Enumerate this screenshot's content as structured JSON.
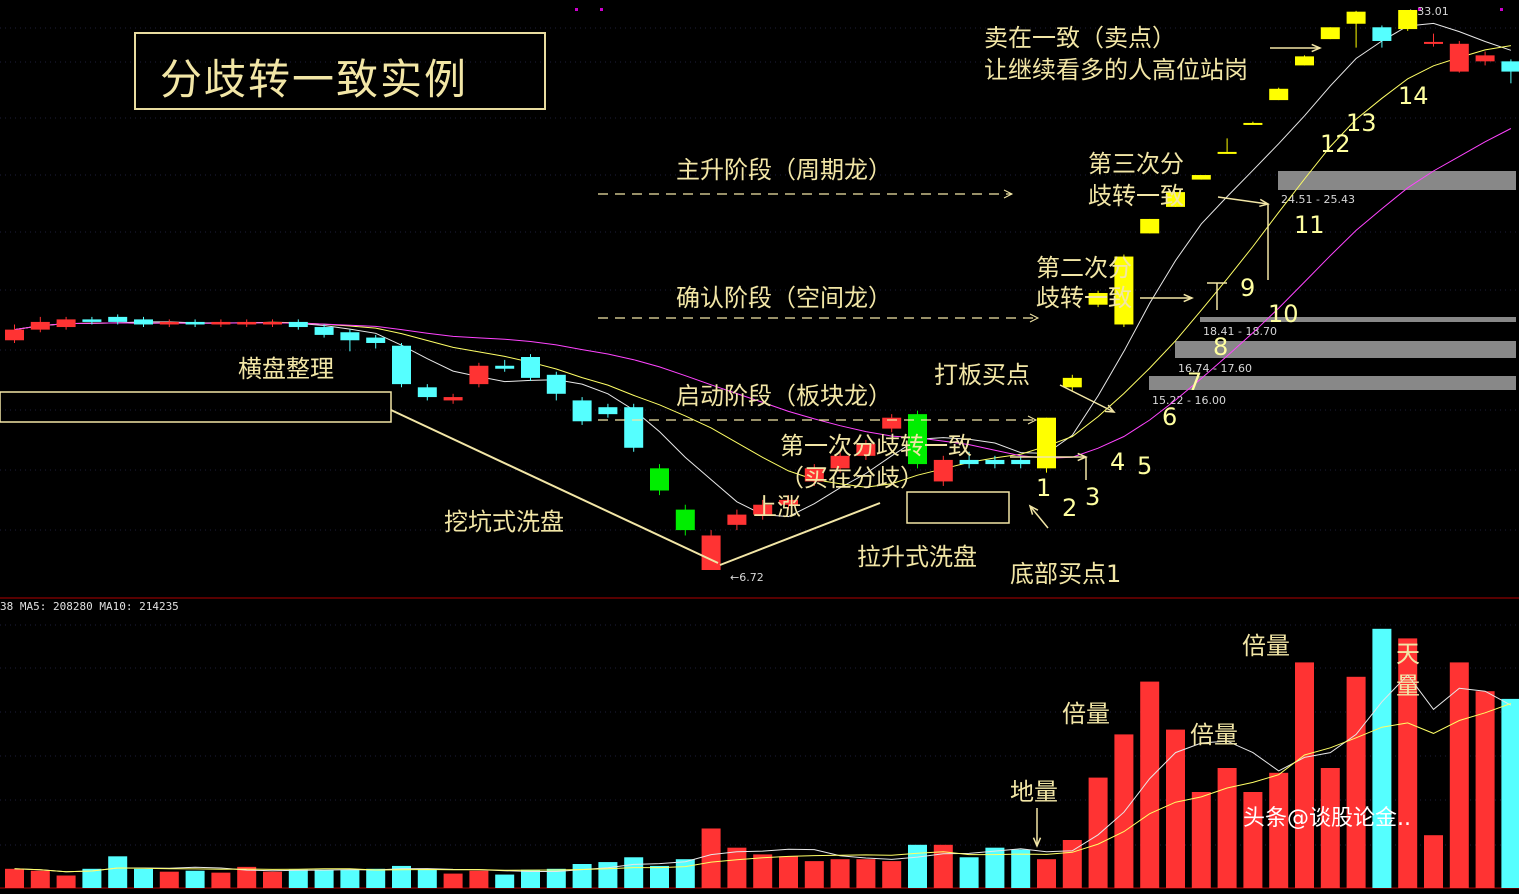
{
  "title": "分歧转一致实例",
  "volume_info": "38 MA5: 208280 MA10: 214235",
  "watermark": "头条@谈股论金..",
  "colors": {
    "up": "#ff3333",
    "down": "#55ffff",
    "bright_down": "#00ee00",
    "limit_up": "#ffff00",
    "ma_white": "#e8e8e8",
    "ma_yellow": "#ffff66",
    "ma_magenta": "#ff44ff",
    "zone": "#888888",
    "annotation": "#f2e6a6"
  },
  "chart_data": {
    "type": "candlestick",
    "candles": [
      {
        "i": 0,
        "o": 10.4,
        "c": 10.8,
        "h": 11.0,
        "l": 10.3,
        "color": "up",
        "vol": 20
      },
      {
        "i": 1,
        "o": 10.8,
        "c": 11.1,
        "h": 11.3,
        "l": 10.7,
        "color": "up",
        "vol": 18
      },
      {
        "i": 2,
        "o": 10.9,
        "c": 11.2,
        "h": 11.3,
        "l": 10.8,
        "color": "up",
        "vol": 13
      },
      {
        "i": 3,
        "o": 11.2,
        "c": 11.1,
        "h": 11.3,
        "l": 11.0,
        "color": "down",
        "vol": 20
      },
      {
        "i": 4,
        "o": 11.3,
        "c": 11.1,
        "h": 11.4,
        "l": 11.0,
        "color": "down",
        "vol": 33
      },
      {
        "i": 5,
        "o": 11.2,
        "c": 11.0,
        "h": 11.3,
        "l": 10.9,
        "color": "down",
        "vol": 20
      },
      {
        "i": 6,
        "o": 11.0,
        "c": 11.1,
        "h": 11.2,
        "l": 10.9,
        "color": "up",
        "vol": 17
      },
      {
        "i": 7,
        "o": 11.1,
        "c": 11.0,
        "h": 11.2,
        "l": 10.9,
        "color": "down",
        "vol": 18
      },
      {
        "i": 8,
        "o": 11.0,
        "c": 11.1,
        "h": 11.2,
        "l": 10.9,
        "color": "up",
        "vol": 16
      },
      {
        "i": 9,
        "o": 11.0,
        "c": 11.1,
        "h": 11.2,
        "l": 10.9,
        "color": "up",
        "vol": 22
      },
      {
        "i": 10,
        "o": 11.0,
        "c": 11.1,
        "h": 11.2,
        "l": 10.9,
        "color": "up",
        "vol": 17
      },
      {
        "i": 11,
        "o": 11.1,
        "c": 10.9,
        "h": 11.2,
        "l": 10.8,
        "color": "down",
        "vol": 19
      },
      {
        "i": 12,
        "o": 10.9,
        "c": 10.6,
        "h": 11.0,
        "l": 10.5,
        "color": "down",
        "vol": 19
      },
      {
        "i": 13,
        "o": 10.7,
        "c": 10.4,
        "h": 10.8,
        "l": 10.0,
        "color": "down",
        "vol": 19
      },
      {
        "i": 14,
        "o": 10.5,
        "c": 10.3,
        "h": 10.6,
        "l": 10.1,
        "color": "down",
        "vol": 20
      },
      {
        "i": 15,
        "o": 10.2,
        "c": 8.9,
        "h": 10.3,
        "l": 8.8,
        "color": "down",
        "vol": 23
      },
      {
        "i": 16,
        "o": 8.8,
        "c": 8.5,
        "h": 8.9,
        "l": 8.4,
        "color": "down",
        "vol": 20
      },
      {
        "i": 17,
        "o": 8.4,
        "c": 8.5,
        "h": 8.6,
        "l": 8.3,
        "color": "up",
        "vol": 15
      },
      {
        "i": 18,
        "o": 8.9,
        "c": 9.5,
        "h": 9.6,
        "l": 8.8,
        "color": "up",
        "vol": 18
      },
      {
        "i": 19,
        "o": 9.4,
        "c": 9.5,
        "h": 9.7,
        "l": 9.3,
        "color": "down",
        "vol": 14
      },
      {
        "i": 20,
        "o": 9.8,
        "c": 9.1,
        "h": 9.9,
        "l": 9.0,
        "color": "down",
        "vol": 19
      },
      {
        "i": 21,
        "o": 9.2,
        "c": 8.6,
        "h": 9.3,
        "l": 8.4,
        "color": "down",
        "vol": 20
      },
      {
        "i": 22,
        "o": 8.4,
        "c": 7.8,
        "h": 8.5,
        "l": 7.7,
        "color": "down",
        "vol": 25
      },
      {
        "i": 23,
        "o": 8.2,
        "c": 8.0,
        "h": 8.3,
        "l": 7.9,
        "color": "down",
        "vol": 27
      },
      {
        "i": 24,
        "o": 8.2,
        "c": 7.1,
        "h": 8.3,
        "l": 7.0,
        "color": "down",
        "vol": 32
      },
      {
        "i": 25,
        "o": 6.6,
        "c": 6.1,
        "h": 6.7,
        "l": 6.0,
        "color": "bright_down",
        "vol": 23
      },
      {
        "i": 26,
        "o": 5.7,
        "c": 5.3,
        "h": 5.8,
        "l": 5.2,
        "color": "bright_down",
        "vol": 30
      },
      {
        "i": 27,
        "o": 4.6,
        "c": 5.2,
        "h": 5.3,
        "l": 4.6,
        "color": "up",
        "vol": 62
      },
      {
        "i": 28,
        "o": 5.4,
        "c": 5.6,
        "h": 5.7,
        "l": 5.3,
        "color": "up",
        "vol": 42
      },
      {
        "i": 29,
        "o": 5.6,
        "c": 5.8,
        "h": 5.9,
        "l": 5.5,
        "color": "up",
        "vol": 35
      },
      {
        "i": 30,
        "o": 5.8,
        "c": 5.9,
        "h": 6.0,
        "l": 5.7,
        "color": "up",
        "vol": 33
      },
      {
        "i": 31,
        "o": 6.3,
        "c": 6.6,
        "h": 6.7,
        "l": 6.2,
        "color": "up",
        "vol": 28
      },
      {
        "i": 32,
        "o": 6.6,
        "c": 6.9,
        "h": 7.0,
        "l": 6.5,
        "color": "up",
        "vol": 30
      },
      {
        "i": 33,
        "o": 6.9,
        "c": 7.2,
        "h": 7.3,
        "l": 6.8,
        "color": "up",
        "vol": 30
      },
      {
        "i": 34,
        "o": 7.6,
        "c": 7.9,
        "h": 8.0,
        "l": 7.5,
        "color": "up",
        "vol": 28
      },
      {
        "i": 35,
        "o": 6.7,
        "c": 8.0,
        "h": 8.1,
        "l": 6.6,
        "color": "bright_down",
        "vol": 45
      },
      {
        "i": 36,
        "o": 6.3,
        "c": 6.8,
        "h": 6.9,
        "l": 6.2,
        "color": "up",
        "vol": 45
      },
      {
        "i": 37,
        "o": 6.8,
        "c": 6.7,
        "h": 7.0,
        "l": 6.6,
        "color": "down",
        "vol": 32
      },
      {
        "i": 38,
        "o": 6.8,
        "c": 6.7,
        "h": 6.9,
        "l": 6.6,
        "color": "down",
        "vol": 42
      },
      {
        "i": 39,
        "o": 6.8,
        "c": 6.7,
        "h": 6.9,
        "l": 6.6,
        "color": "down",
        "vol": 40
      },
      {
        "i": 40,
        "o": 6.6,
        "c": 7.9,
        "h": 7.9,
        "l": 6.5,
        "color": "limit_up",
        "vol": 30
      },
      {
        "i": 41,
        "o": 8.8,
        "c": 9.1,
        "h": 9.2,
        "l": 8.7,
        "color": "limit_up",
        "vol": 50
      },
      {
        "i": 42,
        "o": 11.8,
        "c": 12.3,
        "h": 12.4,
        "l": 11.7,
        "color": "limit_up",
        "vol": 115
      },
      {
        "i": 43,
        "o": 11.0,
        "c": 14.0,
        "h": 14.1,
        "l": 10.9,
        "color": "limit_up",
        "vol": 160
      },
      {
        "i": 44,
        "o": 15.2,
        "c": 16.0,
        "h": 16.0,
        "l": 15.2,
        "color": "limit_up",
        "vol": 215
      },
      {
        "i": 45,
        "o": 16.7,
        "c": 17.6,
        "h": 17.6,
        "l": 16.7,
        "color": "limit_up",
        "vol": 165
      },
      {
        "i": 46,
        "o": 18.4,
        "c": 18.7,
        "h": 18.7,
        "l": 18.4,
        "color": "limit_up",
        "vol": 100
      },
      {
        "i": 47,
        "o": 20.3,
        "c": 20.3,
        "h": 21.3,
        "l": 20.3,
        "color": "limit_up",
        "vol": 125
      },
      {
        "i": 48,
        "o": 22.5,
        "c": 22.5,
        "h": 22.6,
        "l": 22.4,
        "color": "limit_up",
        "vol": 100
      },
      {
        "i": 49,
        "o": 24.4,
        "c": 25.4,
        "h": 25.5,
        "l": 24.4,
        "color": "limit_up",
        "vol": 120
      },
      {
        "i": 50,
        "o": 27.6,
        "c": 28.5,
        "h": 28.6,
        "l": 27.6,
        "color": "limit_up",
        "vol": 235
      },
      {
        "i": 51,
        "o": 30.3,
        "c": 31.6,
        "h": 31.6,
        "l": 30.3,
        "color": "limit_up",
        "vol": 125
      },
      {
        "i": 52,
        "o": 32.0,
        "c": 33.4,
        "h": 33.5,
        "l": 29.4,
        "color": "limit_up",
        "vol": 220
      },
      {
        "i": 53,
        "o": 30.1,
        "c": 31.6,
        "h": 31.8,
        "l": 29.4,
        "color": "down",
        "vol": 270
      },
      {
        "i": 54,
        "o": 31.4,
        "c": 33.6,
        "h": 33.6,
        "l": 31.2,
        "color": "limit_up",
        "vol": 260
      },
      {
        "i": 55,
        "o": 30.0,
        "c": 30.0,
        "h": 30.9,
        "l": 29.5,
        "color": "up",
        "vol": 55
      },
      {
        "i": 56,
        "o": 29.8,
        "c": 27.0,
        "h": 30.1,
        "l": 26.9,
        "color": "up",
        "vol": 235
      },
      {
        "i": 57,
        "o": 28.6,
        "c": 28.0,
        "h": 29.0,
        "l": 27.6,
        "color": "up",
        "vol": 205
      },
      {
        "i": 58,
        "o": 28.0,
        "c": 27.0,
        "h": 28.2,
        "l": 25.9,
        "color": "down",
        "vol": 197
      }
    ],
    "price_levels": [
      {
        "label": "33.01"
      },
      {
        "label": "24.51 - 25.43"
      },
      {
        "label": "18.41 - 18.70"
      },
      {
        "label": "16.74 - 17.60"
      },
      {
        "label": "15.22 - 16.00"
      },
      {
        "label": "6.72"
      }
    ],
    "annotations": [
      {
        "text": "横盘整理"
      },
      {
        "text": "挖坑式洗盘"
      },
      {
        "text": "上涨"
      },
      {
        "text": "拉升式洗盘"
      },
      {
        "text": "底部买点1"
      },
      {
        "text": "主升阶段（周期龙）"
      },
      {
        "text": "确认阶段（空间龙）"
      },
      {
        "text": "启动阶段（板块龙）"
      },
      {
        "text": "第一次分歧转一致"
      },
      {
        "text": "（买在分歧）"
      },
      {
        "text": "打板买点"
      },
      {
        "text": "第二次分"
      },
      {
        "text": "歧转一致"
      },
      {
        "text": "第三次分"
      },
      {
        "text": "歧转一致"
      },
      {
        "text": "卖在一致（卖点）"
      },
      {
        "text": "让继续看多的人高位站岗"
      },
      {
        "text": "地量"
      },
      {
        "text": "倍量"
      },
      {
        "text": "倍量"
      },
      {
        "text": "倍量"
      },
      {
        "text": "天"
      },
      {
        "text": "量"
      }
    ],
    "candle_numbers": [
      "1",
      "2",
      "3",
      "4",
      "5",
      "6",
      "7",
      "8",
      "9",
      "10",
      "11",
      "12",
      "13",
      "14"
    ]
  }
}
